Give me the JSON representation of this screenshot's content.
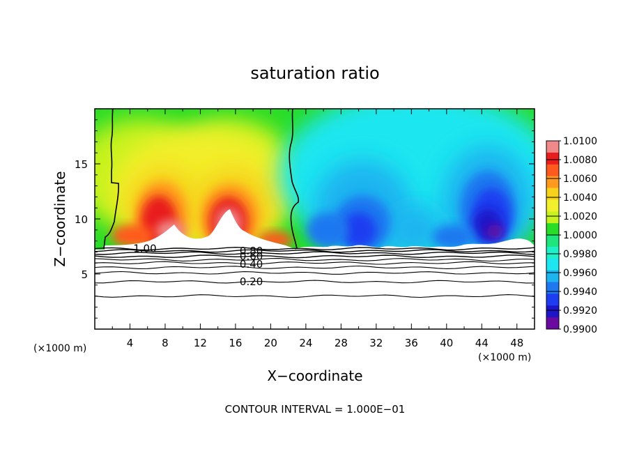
{
  "chart_data": {
    "type": "heatmap",
    "title": "saturation ratio",
    "xlabel": "X−coordinate",
    "ylabel": "Z−coordinate",
    "x_unit_left": "(×1000 m)",
    "x_unit_right": "(×1000 m)",
    "footer": "CONTOUR INTERVAL = 1.000E−01",
    "xlim": [
      0,
      50
    ],
    "ylim": [
      0,
      20
    ],
    "x_ticks": [
      4,
      8,
      12,
      16,
      20,
      24,
      28,
      32,
      36,
      40,
      44,
      48
    ],
    "y_ticks": [
      5,
      10,
      15
    ],
    "colorbar": {
      "range": [
        0.99,
        1.01
      ],
      "ticks": [
        "1.0100",
        "1.0080",
        "1.0060",
        "1.0040",
        "1.0020",
        "1.0000",
        "0.9980",
        "0.9960",
        "0.9940",
        "0.9920",
        "0.9900"
      ],
      "colors": [
        "#f08a8a",
        "#e81e1e",
        "#ff5a1e",
        "#ff9a1e",
        "#f7d21c",
        "#f2ef2c",
        "#c6f21e",
        "#28dc28",
        "#1ee67c",
        "#1ef0c8",
        "#1ee6f0",
        "#1eb4f0",
        "#1e78f0",
        "#1e3cf0",
        "#1e14c8",
        "#6a0aa0"
      ]
    },
    "contour_labels": [
      {
        "text": "1.00",
        "x": 5.7,
        "z": 7.3
      },
      {
        "text": "0.80",
        "x": 17.8,
        "z": 7.1
      },
      {
        "text": "0.60",
        "x": 17.8,
        "z": 6.6
      },
      {
        "text": "0.40",
        "x": 17.8,
        "z": 5.9
      },
      {
        "text": "0.20",
        "x": 17.8,
        "z": 4.3
      }
    ],
    "contour_levels_z": [
      3.0,
      4.3,
      5.1,
      5.6,
      6.0,
      6.3,
      6.6,
      6.9,
      7.1,
      7.3
    ]
  }
}
